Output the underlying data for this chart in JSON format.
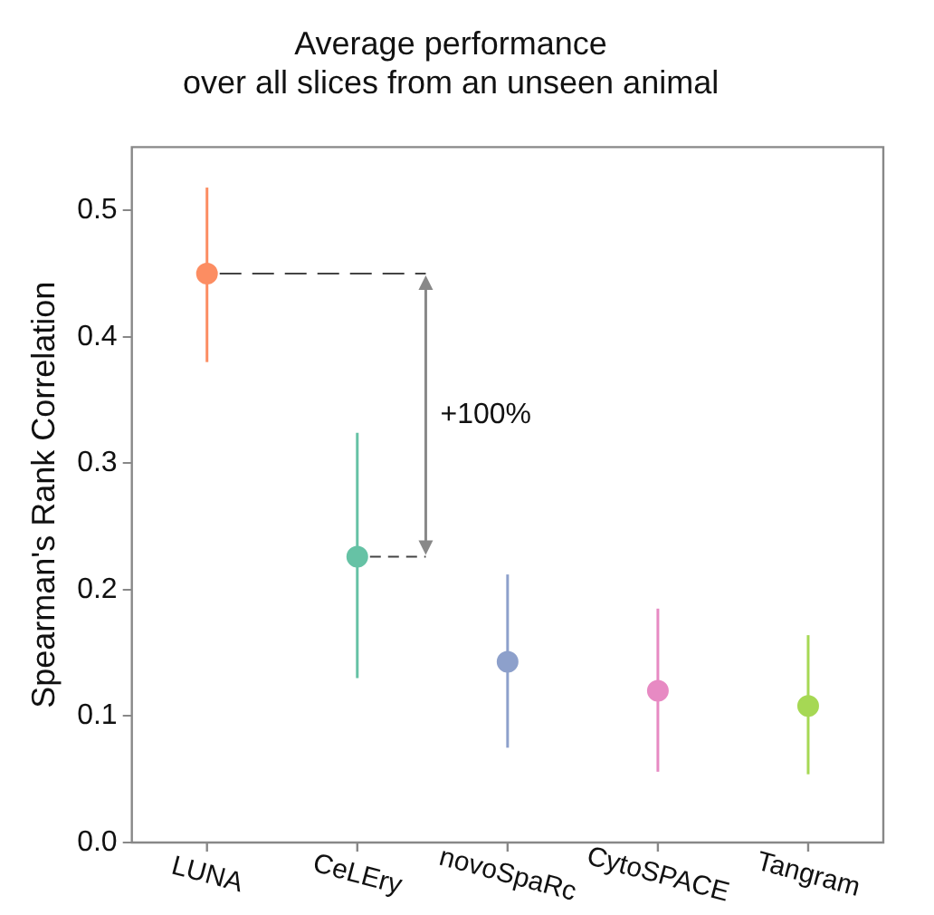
{
  "chart_data": {
    "type": "scatter",
    "title": "Average performance\nover all slices from an unseen animal",
    "ylabel": "Spearman's Rank Correlation",
    "categories": [
      "LUNA",
      "CeLEry",
      "novoSpaRc",
      "CytoSPACE",
      "Tangram"
    ],
    "values": [
      0.45,
      0.226,
      0.143,
      0.12,
      0.108
    ],
    "errors": [
      [
        0.38,
        0.518
      ],
      [
        0.13,
        0.324
      ],
      [
        0.075,
        0.212
      ],
      [
        0.056,
        0.185
      ],
      [
        0.054,
        0.164
      ]
    ],
    "colors": [
      "#fc8d62",
      "#66c2a5",
      "#8da0cb",
      "#e78ac3",
      "#a6d854"
    ],
    "ylim": [
      0,
      0.55
    ],
    "yticks": [
      {
        "value": 0,
        "label": "0.0"
      },
      0.1,
      0.2,
      0.3,
      0.4,
      0.5
    ],
    "annotations": [
      "+100%"
    ],
    "grid": false,
    "legend": false,
    "marker": "circle"
  }
}
